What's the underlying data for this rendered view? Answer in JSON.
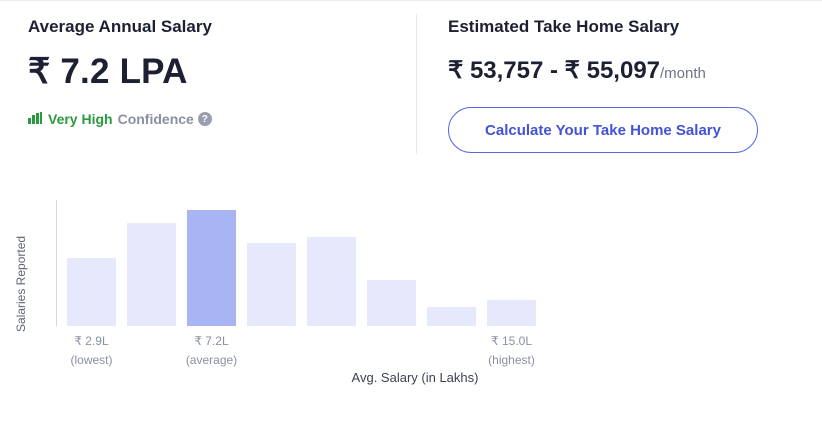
{
  "salary": {
    "title": "Average Annual Salary",
    "value": "₹ 7.2 LPA",
    "confidence_level": "Very High",
    "confidence_label": "Confidence",
    "help_icon": "question-circle-icon",
    "confidence_icon": "signal-bars-icon"
  },
  "take_home": {
    "title": "Estimated Take Home Salary",
    "range": "₹ 53,757 - ₹ 55,097",
    "unit": "/month",
    "button_label": "Calculate Your Take Home Salary"
  },
  "chart_data": {
    "type": "bar",
    "ylabel": "Salaries Reported",
    "xlabel": "Avg. Salary (in Lakhs)",
    "values": [
      68,
      103,
      116,
      83,
      89,
      46,
      19,
      26
    ],
    "highlight_index": 2,
    "tick_labels": [
      {
        "bar_index": 0,
        "value": "₹ 2.9L",
        "sub": "(lowest)"
      },
      {
        "bar_index": 2,
        "value": "₹ 7.2L",
        "sub": "(average)"
      },
      {
        "bar_index": 7,
        "value": "₹ 15.0L",
        "sub": "(highest)"
      }
    ],
    "colors": {
      "bar": "#e6e9fb",
      "highlight": "#a9b4f5"
    }
  }
}
